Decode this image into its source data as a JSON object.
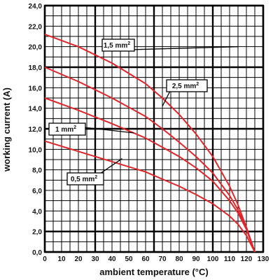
{
  "chart_data": {
    "type": "line",
    "xlabel": "ambient temperature (°C)",
    "ylabel": "working current (A)",
    "xlim": [
      0,
      130
    ],
    "ylim": [
      0,
      24
    ],
    "x_ticks": [
      "0",
      "10",
      "20",
      "30",
      "40",
      "50",
      "60",
      "70",
      "80",
      "90",
      "100",
      "110",
      "120",
      "130"
    ],
    "y_ticks": [
      "0,0",
      "2,0",
      "4,0",
      "6,0",
      "8,0",
      "10,0",
      "12,0",
      "14,0",
      "16,0",
      "18,0",
      "20,0",
      "22,0",
      "24,0"
    ],
    "minor_grid": {
      "x_step": 5,
      "y_step": 1
    },
    "grid": true,
    "line_color": "#e0252b",
    "series": [
      {
        "name": "2,5 mm²",
        "x": [
          0,
          20,
          40,
          60,
          70,
          80,
          90,
          100,
          110,
          115,
          120,
          125
        ],
        "y": [
          21.2,
          20.0,
          18.4,
          16.4,
          15.0,
          13.4,
          11.5,
          9.3,
          6.4,
          4.6,
          2.4,
          0.0
        ]
      },
      {
        "name": "1,5 mm²",
        "x": [
          0,
          20,
          40,
          60,
          70,
          80,
          90,
          100,
          110,
          115,
          120,
          125
        ],
        "y": [
          18.0,
          16.6,
          15.0,
          13.2,
          12.0,
          10.7,
          9.3,
          7.7,
          5.5,
          4.1,
          2.4,
          0.0
        ]
      },
      {
        "name": "1 mm²",
        "x": [
          0,
          20,
          40,
          60,
          70,
          80,
          90,
          100,
          110,
          115,
          120,
          125
        ],
        "y": [
          15.0,
          13.8,
          12.5,
          11.1,
          10.2,
          9.3,
          8.2,
          6.9,
          5.0,
          3.8,
          2.2,
          0.0
        ]
      },
      {
        "name": "0,5 mm²",
        "x": [
          0,
          20,
          40,
          60,
          70,
          80,
          90,
          100,
          110,
          115,
          120,
          125
        ],
        "y": [
          10.8,
          9.8,
          8.8,
          7.8,
          7.1,
          6.4,
          5.6,
          4.7,
          3.5,
          2.7,
          1.6,
          0.0
        ]
      }
    ],
    "annotations": [
      {
        "text": "1,5 mm",
        "sup": "2",
        "series": "1,5 mm²"
      },
      {
        "text": "2,5 mm",
        "sup": "2",
        "series": "2,5 mm²"
      },
      {
        "text": "1 mm",
        "sup": "2",
        "series": "1 mm²"
      },
      {
        "text": "0,5 mm",
        "sup": "2",
        "series": "0,5 mm²"
      }
    ]
  }
}
